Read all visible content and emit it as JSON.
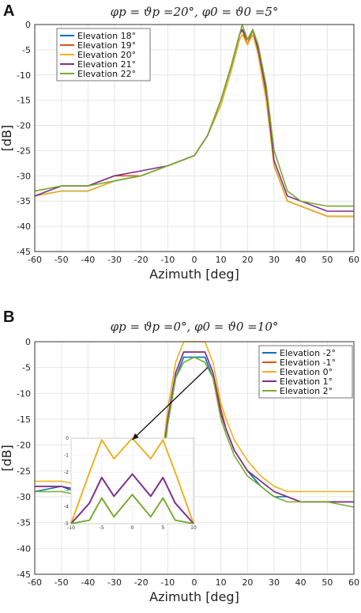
{
  "panels": [
    {
      "label": "A",
      "title": "φp = ϑp =20°, φ0 = ϑ0 =5°"
    },
    {
      "label": "B",
      "title": "φp = ϑp =0°, φ0 = ϑ0 =10°"
    }
  ],
  "chart_data": [
    {
      "type": "line",
      "title": "φp = ϑp =20°, φ0 = ϑ0 =5°",
      "xlabel": "Azimuth [deg]",
      "ylabel": "[dB]",
      "xlim": [
        -60,
        60
      ],
      "ylim": [
        -45,
        0
      ],
      "xticks": [
        -60,
        -50,
        -40,
        -30,
        -20,
        -10,
        0,
        10,
        20,
        30,
        40,
        50,
        60
      ],
      "yticks": [
        0,
        -5,
        -10,
        -15,
        -20,
        -25,
        -30,
        -35,
        -40,
        -45
      ],
      "grid": true,
      "legend_position": "top-left",
      "x": [
        -60,
        -50,
        -40,
        -30,
        -20,
        -10,
        0,
        5,
        10,
        14,
        17,
        18,
        20,
        22,
        24,
        27,
        30,
        35,
        40,
        50,
        60
      ],
      "series": [
        {
          "name": "Elevation 18°",
          "color": "#0072BD",
          "values": [
            -34,
            -33,
            -33,
            -31,
            -30,
            -28,
            -26,
            -22,
            -15,
            -8,
            -2,
            -1,
            -4,
            -1,
            -5,
            -14,
            -28,
            -35,
            -36,
            -38,
            -38
          ]
        },
        {
          "name": "Elevation 19°",
          "color": "#D95319",
          "values": [
            -33,
            -32,
            -32,
            -30,
            -30,
            -28,
            -26,
            -22,
            -15,
            -8,
            -2,
            -1,
            -4,
            -1,
            -5,
            -14,
            -28,
            -35,
            -36,
            -38,
            -38
          ]
        },
        {
          "name": "Elevation 20°",
          "color": "#EDB120",
          "values": [
            -34,
            -33,
            -33,
            -31,
            -30,
            -28,
            -26,
            -22,
            -16,
            -9,
            -3,
            -2,
            -4,
            -2,
            -6,
            -15,
            -28,
            -35,
            -36,
            -38,
            -38
          ]
        },
        {
          "name": "Elevation 21°",
          "color": "#7E2F8E",
          "values": [
            -34,
            -32,
            -32,
            -30,
            -29,
            -28,
            -26,
            -22,
            -15,
            -8,
            -2,
            -1,
            -3,
            -1,
            -5,
            -13,
            -27,
            -34,
            -35,
            -37,
            -37
          ]
        },
        {
          "name": "Elevation 22°",
          "color": "#77AC30",
          "values": [
            -33,
            -32,
            -32,
            -31,
            -30,
            -28,
            -26,
            -22,
            -15,
            -8,
            -2,
            0,
            -3,
            -1,
            -4,
            -12,
            -25,
            -33,
            -35,
            -36,
            -36
          ]
        }
      ]
    },
    {
      "type": "line",
      "title": "φp = ϑp =0°, φ0 = ϑ0 =10°",
      "xlabel": "Azimuth [deg]",
      "ylabel": "[dB]",
      "xlim": [
        -60,
        60
      ],
      "ylim": [
        -45,
        0
      ],
      "xticks": [
        -60,
        -50,
        -40,
        -30,
        -20,
        -10,
        0,
        10,
        20,
        30,
        40,
        50,
        60
      ],
      "yticks": [
        0,
        -5,
        -10,
        -15,
        -20,
        -25,
        -30,
        -35,
        -40,
        -45
      ],
      "grid": true,
      "legend_position": "top-right",
      "x": [
        -60,
        -50,
        -40,
        -30,
        -20,
        -12,
        -10,
        -7,
        -4,
        0,
        4,
        7,
        10,
        12,
        15,
        20,
        25,
        30,
        35,
        40,
        50,
        60
      ],
      "series": [
        {
          "name": "Elevation -2°",
          "color": "#0072BD",
          "values": [
            -29,
            -28,
            -30,
            -29,
            -28,
            -24,
            -16,
            -7,
            -3,
            -3,
            -3,
            -7,
            -14,
            -17,
            -21,
            -25,
            -28,
            -30,
            -30,
            -31,
            -31,
            -31
          ]
        },
        {
          "name": "Elevation -1°",
          "color": "#D95319",
          "values": [
            -28,
            -28,
            -29,
            -29,
            -28,
            -23,
            -15,
            -6,
            -2,
            -2,
            -2,
            -6,
            -13,
            -17,
            -21,
            -25,
            -27,
            -29,
            -30,
            -31,
            -31,
            -31
          ]
        },
        {
          "name": "Elevation 0°",
          "color": "#EDB120",
          "values": [
            -27,
            -27,
            -28,
            -28,
            -27,
            -22,
            -13,
            -4,
            0,
            0,
            0,
            -4,
            -12,
            -15,
            -19,
            -23,
            -26,
            -28,
            -29,
            -29,
            -29,
            -29
          ]
        },
        {
          "name": "Elevation 1°",
          "color": "#7E2F8E",
          "values": [
            -28,
            -28,
            -29,
            -29,
            -28,
            -23,
            -15,
            -6,
            -2,
            -2,
            -2,
            -6,
            -14,
            -17,
            -21,
            -25,
            -27,
            -29,
            -30,
            -31,
            -31,
            -31
          ]
        },
        {
          "name": "Elevation 2°",
          "color": "#77AC30",
          "values": [
            -29,
            -29,
            -30,
            -30,
            -29,
            -24,
            -16,
            -7,
            -4,
            -3,
            -4,
            -7,
            -15,
            -18,
            -22,
            -26,
            -28,
            -30,
            -31,
            -31,
            -31,
            -32
          ]
        }
      ],
      "inset": {
        "xlim": [
          -10,
          10
        ],
        "ylim": [
          -5,
          0
        ],
        "xticks": [
          -10,
          -5,
          0,
          5,
          10
        ],
        "yticks": [
          0,
          -1,
          -2,
          -3,
          -4,
          -5
        ],
        "x": [
          -10,
          -7,
          -5,
          -3,
          0,
          3,
          5,
          7,
          10
        ],
        "series": [
          {
            "name": "Elevation 0°",
            "color": "#EDB120",
            "values": [
              -5,
              -2,
              -0.1,
              -1.2,
              0,
              -1.2,
              -0.1,
              -2,
              -5
            ]
          },
          {
            "name": "Elevation 1°",
            "color": "#7E2F8E",
            "values": [
              -5,
              -3.8,
              -2.3,
              -3.4,
              -2.1,
              -3.4,
              -2.3,
              -3.8,
              -5
            ]
          },
          {
            "name": "Elevation 2°",
            "color": "#77AC30",
            "values": [
              -5,
              -4.8,
              -3.5,
              -4.6,
              -3.3,
              -4.6,
              -3.5,
              -4.8,
              -5
            ]
          }
        ]
      }
    }
  ]
}
